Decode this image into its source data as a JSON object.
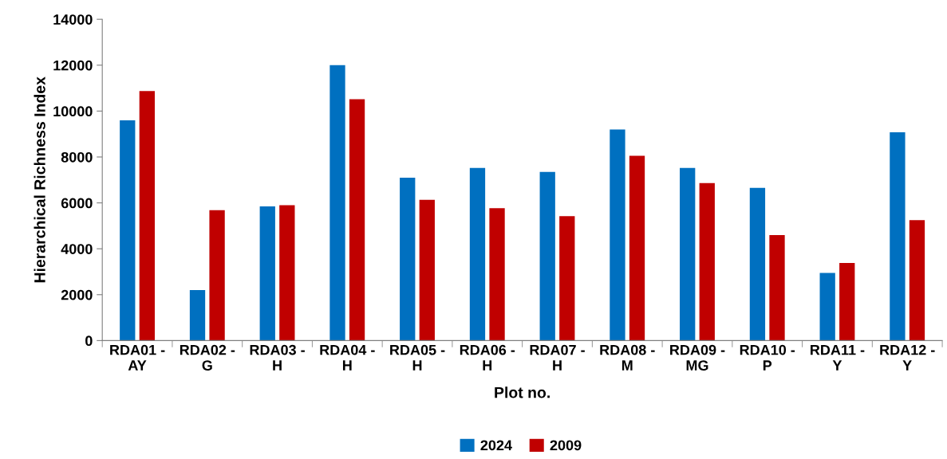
{
  "chart_data": {
    "type": "bar",
    "xlabel": "Plot no.",
    "ylabel": "Hierarchical Richness Index",
    "categories": [
      "RDA01 -\nAY",
      "RDA02 -\nG",
      "RDA03 -\nH",
      "RDA04 -\nH",
      "RDA05 -\nH",
      "RDA06 -\nH",
      "RDA07 -\nH",
      "RDA08 -\nM",
      "RDA09 -\nMG",
      "RDA10 -\nP",
      "RDA11 -\nY",
      "RDA12 -\nY"
    ],
    "series": [
      {
        "name": "2024",
        "color": "#0070c0",
        "values": [
          9600,
          2200,
          5850,
          12000,
          7100,
          7520,
          7350,
          9200,
          7520,
          6650,
          2950,
          9080
        ]
      },
      {
        "name": "2009",
        "color": "#c00000",
        "values": [
          10870,
          5680,
          5900,
          10520,
          6130,
          5770,
          5420,
          8050,
          6860,
          4600,
          3380,
          5250
        ]
      }
    ],
    "ylim": [
      0,
      14000
    ],
    "yticks": [
      0,
      2000,
      4000,
      6000,
      8000,
      10000,
      12000,
      14000
    ],
    "grid": false,
    "legend": "bottom"
  }
}
